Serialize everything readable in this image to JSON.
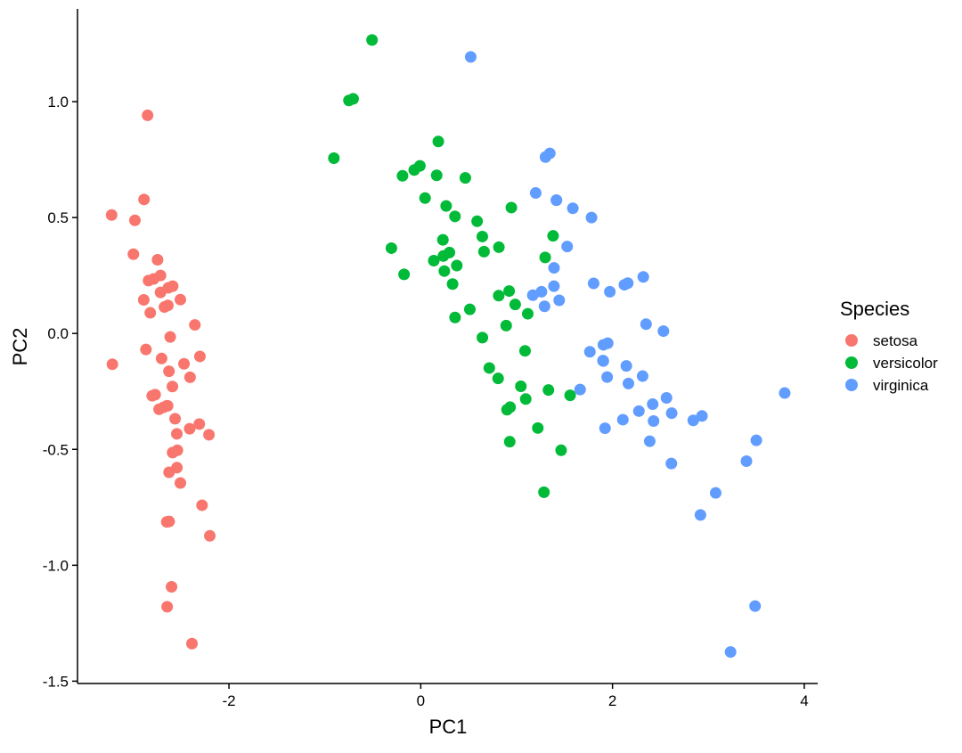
{
  "chart_data": {
    "type": "scatter",
    "xlabel": "PC1",
    "ylabel": "PC2",
    "xlim": [
      -3.58,
      4.14
    ],
    "ylim": [
      -1.51,
      1.4
    ],
    "xticks": [
      -2,
      0,
      2,
      4
    ],
    "xtick_labels": [
      "-2",
      "0",
      "2",
      "4"
    ],
    "yticks": [
      -1.5,
      -1.0,
      -0.5,
      0.0,
      0.5,
      1.0
    ],
    "ytick_labels": [
      "-1.5",
      "-1.0",
      "-0.5",
      "0.0",
      "0.5",
      "1.0"
    ],
    "grid": false,
    "legend": {
      "title": "Species",
      "placement": "right"
    },
    "series": [
      {
        "name": "setosa",
        "color": "#F8766D",
        "points": [
          [
            -2.684,
            -0.319
          ],
          [
            -2.714,
            0.177
          ],
          [
            -2.889,
            0.145
          ],
          [
            -2.745,
            0.318
          ],
          [
            -2.729,
            -0.327
          ],
          [
            -2.281,
            -0.741
          ],
          [
            -2.821,
            0.089
          ],
          [
            -2.626,
            -0.163
          ],
          [
            -2.886,
            0.578
          ],
          [
            -2.673,
            0.114
          ],
          [
            -2.507,
            -0.645
          ],
          [
            -2.613,
            -0.015
          ],
          [
            -2.786,
            0.235
          ],
          [
            -3.224,
            0.511
          ],
          [
            -2.645,
            -1.179
          ],
          [
            -2.386,
            -1.338
          ],
          [
            -2.624,
            -0.811
          ],
          [
            -2.648,
            -0.312
          ],
          [
            -2.2,
            -0.873
          ],
          [
            -2.588,
            -0.514
          ],
          [
            -2.31,
            -0.391
          ],
          [
            -2.544,
            -0.433
          ],
          [
            -3.216,
            -0.133
          ],
          [
            -2.303,
            -0.099
          ],
          [
            -2.356,
            0.037
          ],
          [
            -2.507,
            0.146
          ],
          [
            -2.469,
            -0.131
          ],
          [
            -2.562,
            -0.368
          ],
          [
            -2.64,
            -0.312
          ],
          [
            -2.632,
            0.197
          ],
          [
            -2.587,
            0.204
          ],
          [
            -2.41,
            -0.411
          ],
          [
            -2.649,
            -0.813
          ],
          [
            -2.599,
            -1.093
          ],
          [
            -2.637,
            0.121
          ],
          [
            -2.866,
            -0.069
          ],
          [
            -2.625,
            -0.599
          ],
          [
            -2.801,
            -0.269
          ],
          [
            -2.981,
            0.488
          ],
          [
            -2.59,
            -0.229
          ],
          [
            -2.77,
            -0.264
          ],
          [
            -2.849,
            0.941
          ],
          [
            -2.997,
            0.342
          ],
          [
            -2.406,
            -0.189
          ],
          [
            -2.209,
            -0.437
          ],
          [
            -2.714,
            0.25
          ],
          [
            -2.538,
            -0.504
          ],
          [
            -2.839,
            0.228
          ],
          [
            -2.543,
            -0.579
          ],
          [
            -2.703,
            -0.108
          ]
        ]
      },
      {
        "name": "versicolor",
        "color": "#00BA38",
        "points": [
          [
            1.285,
            -0.685
          ],
          [
            0.932,
            -0.318
          ],
          [
            1.464,
            -0.504
          ],
          [
            0.183,
            0.828
          ],
          [
            1.088,
            -0.075
          ],
          [
            0.642,
            0.418
          ],
          [
            1.095,
            -0.283
          ],
          [
            -0.749,
            1.005
          ],
          [
            1.044,
            -0.228
          ],
          [
            -0.009,
            0.723
          ],
          [
            -0.508,
            1.266
          ],
          [
            0.512,
            0.104
          ],
          [
            0.265,
            0.55
          ],
          [
            0.985,
            0.125
          ],
          [
            -0.174,
            0.255
          ],
          [
            0.928,
            -0.467
          ],
          [
            0.66,
            0.353
          ],
          [
            0.236,
            0.334
          ],
          [
            0.945,
            0.543
          ],
          [
            0.045,
            0.584
          ],
          [
            1.116,
            0.085
          ],
          [
            0.358,
            0.069
          ],
          [
            1.298,
            0.328
          ],
          [
            0.922,
            0.183
          ],
          [
            0.715,
            -0.149
          ],
          [
            0.9,
            -0.329
          ],
          [
            1.332,
            -0.244
          ],
          [
            1.558,
            -0.267
          ],
          [
            0.813,
            0.163
          ],
          [
            -0.306,
            0.368
          ],
          [
            -0.068,
            0.705
          ],
          [
            -0.19,
            0.68
          ],
          [
            0.136,
            0.314
          ],
          [
            1.38,
            0.421
          ],
          [
            0.588,
            0.484
          ],
          [
            0.807,
            -0.194
          ],
          [
            1.221,
            -0.408
          ],
          [
            0.815,
            0.372
          ],
          [
            0.246,
            0.269
          ],
          [
            0.166,
            0.682
          ],
          [
            0.465,
            0.671
          ],
          [
            0.891,
            0.034
          ],
          [
            0.231,
            0.404
          ],
          [
            -0.705,
            1.012
          ],
          [
            0.357,
            0.505
          ],
          [
            0.332,
            0.213
          ],
          [
            0.376,
            0.293
          ],
          [
            0.643,
            -0.018
          ],
          [
            -0.906,
            0.756
          ],
          [
            0.299,
            0.349
          ]
        ]
      },
      {
        "name": "virginica",
        "color": "#619CFF",
        "points": [
          [
            2.531,
            0.01
          ],
          [
            1.415,
            0.575
          ],
          [
            2.617,
            -0.344
          ],
          [
            1.972,
            0.18
          ],
          [
            2.35,
            0.04
          ],
          [
            3.397,
            -0.551
          ],
          [
            0.521,
            1.193
          ],
          [
            2.933,
            -0.356
          ],
          [
            2.321,
            0.244
          ],
          [
            2.917,
            -0.783
          ],
          [
            1.662,
            -0.242
          ],
          [
            1.803,
            0.216
          ],
          [
            2.166,
            -0.216
          ],
          [
            1.346,
            0.777
          ],
          [
            1.586,
            0.54
          ],
          [
            1.904,
            -0.119
          ],
          [
            1.95,
            -0.042
          ],
          [
            3.487,
            -1.176
          ],
          [
            3.796,
            -0.257
          ],
          [
            1.301,
            0.761
          ],
          [
            2.428,
            -0.378
          ],
          [
            1.199,
            0.606
          ],
          [
            3.5,
            -0.461
          ],
          [
            1.389,
            0.204
          ],
          [
            2.275,
            -0.335
          ],
          [
            2.614,
            -0.561
          ],
          [
            1.259,
            0.18
          ],
          [
            1.291,
            0.117
          ],
          [
            2.124,
            0.21
          ],
          [
            2.388,
            -0.465
          ],
          [
            2.842,
            -0.375
          ],
          [
            3.231,
            -1.374
          ],
          [
            2.159,
            0.217
          ],
          [
            1.444,
            0.143
          ],
          [
            1.781,
            0.5
          ],
          [
            3.076,
            -0.688
          ],
          [
            2.144,
            -0.14
          ],
          [
            1.905,
            -0.049
          ],
          [
            1.169,
            0.165
          ],
          [
            2.108,
            -0.372
          ],
          [
            2.314,
            -0.184
          ],
          [
            1.922,
            -0.409
          ],
          [
            1.415,
            0.575
          ],
          [
            2.563,
            -0.278
          ],
          [
            2.419,
            -0.305
          ],
          [
            1.944,
            -0.188
          ],
          [
            1.527,
            0.375
          ],
          [
            1.764,
            -0.079
          ],
          [
            1.901,
            -0.117
          ],
          [
            1.39,
            0.283
          ]
        ]
      }
    ]
  }
}
